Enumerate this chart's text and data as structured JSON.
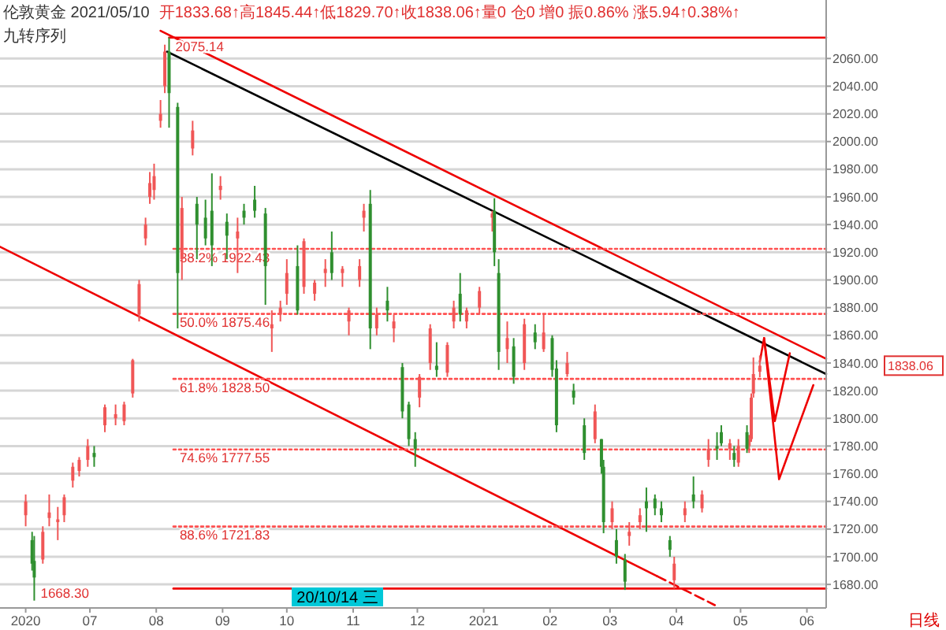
{
  "chart_data": {
    "type": "candlestick",
    "title": "伦敦黄金 2021/05/10",
    "subtitle": "开1833.68↑高1845.44↑低1829.70↑收1838.06↑量0 仓0 增0 振0.86% 涨5.94↑0.38%↑",
    "xlim": [
      "2020-05-20",
      "2021-06-10"
    ],
    "xticks": [
      {
        "value": "2020-06-01",
        "label": "2020"
      },
      {
        "value": "2020-07-01",
        "label": "07"
      },
      {
        "value": "2020-08-01",
        "label": "08"
      },
      {
        "value": "2020-09-01",
        "label": "09"
      },
      {
        "value": "2020-10-01",
        "label": "10"
      },
      {
        "value": "2020-11-01",
        "label": "11"
      },
      {
        "value": "2020-12-01",
        "label": "12"
      },
      {
        "value": "2021-01-01",
        "label": "2021"
      },
      {
        "value": "2021-02-01",
        "label": "02"
      },
      {
        "value": "2021-03-01",
        "label": "03"
      },
      {
        "value": "2021-04-01",
        "label": "04"
      },
      {
        "value": "2021-05-01",
        "label": "05"
      },
      {
        "value": "2021-06-01",
        "label": "06"
      }
    ],
    "ylim": [
      1663,
      2100
    ],
    "yticks": [
      {
        "value": 1680,
        "label": "1680.00"
      },
      {
        "value": 1700,
        "label": "1700.00"
      },
      {
        "value": 1720,
        "label": "1720.00"
      },
      {
        "value": 1740,
        "label": "1740.00"
      },
      {
        "value": 1760,
        "label": "1760.00"
      },
      {
        "value": 1780,
        "label": "1780.00"
      },
      {
        "value": 1800,
        "label": "1800.00"
      },
      {
        "value": 1820,
        "label": "1820.00"
      },
      {
        "value": 1840,
        "label": "1840.00"
      },
      {
        "value": 1860,
        "label": "1860.00"
      },
      {
        "value": 1880,
        "label": "1880.00"
      },
      {
        "value": 1900,
        "label": "1900.00"
      },
      {
        "value": 1920,
        "label": "1920.00"
      },
      {
        "value": 1940,
        "label": "1940.00"
      },
      {
        "value": 1960,
        "label": "1960.00"
      },
      {
        "value": 1980,
        "label": "1980.00"
      },
      {
        "value": 2000,
        "label": "2000.00"
      },
      {
        "value": 2020,
        "label": "2020.00"
      },
      {
        "value": 2040,
        "label": "2040.00"
      },
      {
        "value": 2060,
        "label": "2060.00"
      }
    ],
    "grid": "y",
    "series": [
      {
        "type": "line",
        "color": "#ee0000",
        "line_style": "solid",
        "x": [
          "2020-08-03",
          "2021-06-10"
        ],
        "values": [
          2080,
          1843
        ]
      },
      {
        "type": "line",
        "color": "#000000",
        "line_style": "solid",
        "x": [
          "2020-08-06",
          "2021-06-10"
        ],
        "values": [
          2065,
          1832
        ]
      },
      {
        "type": "line",
        "color": "#ee0000",
        "line_style": "solid",
        "x": [
          "2020-05-20",
          "2021-03-23"
        ],
        "values": [
          1924,
          1686
        ]
      },
      {
        "type": "line",
        "color": "#ee0000",
        "line_style": "dashed",
        "x": [
          "2021-03-23",
          "2021-04-19"
        ],
        "values": [
          1686,
          1665
        ]
      },
      {
        "type": "line",
        "color": "#ee0000",
        "line_style": "solid",
        "x": [
          "2020-08-07",
          "2021-06-10"
        ],
        "values": [
          2075.14,
          2075.14
        ]
      },
      {
        "type": "line",
        "color": "#ee0000",
        "line_style": "solid",
        "x": [
          "2020-08-09",
          "2021-06-10"
        ],
        "values": [
          1677,
          1677
        ]
      },
      {
        "type": "line",
        "color": "#ff5050",
        "line_style": "dotted",
        "x": [
          "2020-08-09",
          "2021-06-10"
        ],
        "values": [
          1922.43,
          1922.43
        ]
      },
      {
        "type": "line",
        "color": "#ff5050",
        "line_style": "dotted",
        "x": [
          "2020-08-09",
          "2021-06-10"
        ],
        "values": [
          1875.46,
          1875.46
        ]
      },
      {
        "type": "line",
        "color": "#ff5050",
        "line_style": "dotted",
        "x": [
          "2020-08-09",
          "2021-06-10"
        ],
        "values": [
          1828.5,
          1828.5
        ]
      },
      {
        "type": "line",
        "color": "#ff5050",
        "line_style": "dotted",
        "x": [
          "2020-08-09",
          "2021-06-10"
        ],
        "values": [
          1777.55,
          1777.55
        ]
      },
      {
        "type": "line",
        "color": "#ff5050",
        "line_style": "dotted",
        "x": [
          "2020-08-09",
          "2021-06-10"
        ],
        "values": [
          1721.83,
          1721.83
        ]
      },
      {
        "type": "line",
        "color": "#ee0000",
        "line_style": "solid",
        "x": [
          "2021-05-10",
          "2021-05-12",
          "2021-05-17",
          "2021-05-24"
        ],
        "values": [
          1841,
          1858,
          1798,
          1847
        ]
      },
      {
        "type": "line",
        "color": "#ee0000",
        "line_style": "solid",
        "x": [
          "2021-05-12",
          "2021-05-19",
          "2021-06-04"
        ],
        "values": [
          1858,
          1756,
          1824
        ]
      },
      {
        "color": "#f05656",
        "x": [
          "2020-06-01",
          "2020-06-09",
          "2020-06-12",
          "2020-06-16",
          "2020-06-19",
          "2020-06-23",
          "2020-06-26",
          "2020-06-30",
          "2020-07-08",
          "2020-07-13",
          "2020-07-17",
          "2020-07-21",
          "2020-07-24",
          "2020-07-27",
          "2020-07-29",
          "2020-07-31",
          "2020-08-03",
          "2020-08-05",
          "2020-08-13",
          "2020-08-18",
          "2020-08-31",
          "2020-09-08",
          "2020-09-24",
          "2020-09-28",
          "2020-10-01",
          "2020-10-09",
          "2020-10-14",
          "2020-10-19",
          "2020-10-27",
          "2020-10-30",
          "2020-11-04",
          "2020-11-06",
          "2020-11-12",
          "2020-11-20",
          "2020-12-02",
          "2020-12-07",
          "2020-12-15",
          "2020-12-18",
          "2020-12-24",
          "2020-12-30",
          "2021-01-05",
          "2021-01-12",
          "2021-01-20",
          "2021-01-29",
          "2021-02-09",
          "2021-02-22",
          "2021-03-02",
          "2021-03-10",
          "2021-03-15",
          "2021-03-31",
          "2021-04-05",
          "2021-04-13",
          "2021-04-16",
          "2021-04-26",
          "2021-04-30",
          "2021-05-05",
          "2021-05-06",
          "2021-05-07",
          "2021-05-10"
        ],
        "ohlc": [
          [
            1730,
            1745,
            1722,
            1740
          ],
          [
            1698,
            1722,
            1695,
            1718
          ],
          [
            1728,
            1745,
            1722,
            1732
          ],
          [
            1725,
            1736,
            1712,
            1727
          ],
          [
            1730,
            1745,
            1725,
            1743
          ],
          [
            1755,
            1768,
            1750,
            1765
          ],
          [
            1762,
            1772,
            1758,
            1770
          ],
          [
            1770,
            1785,
            1765,
            1780
          ],
          [
            1795,
            1810,
            1790,
            1808
          ],
          [
            1800,
            1810,
            1795,
            1803
          ],
          [
            1798,
            1812,
            1795,
            1810
          ],
          [
            1818,
            1843,
            1815,
            1842
          ],
          [
            1875,
            1900,
            1870,
            1897
          ],
          [
            1930,
            1945,
            1925,
            1940
          ],
          [
            1960,
            1978,
            1955,
            1970
          ],
          [
            1965,
            1984,
            1958,
            1975
          ],
          [
            2015,
            2030,
            2010,
            2020
          ],
          [
            2040,
            2070,
            2035,
            2065
          ],
          [
            1915,
            1960,
            1900,
            1952
          ],
          [
            1995,
            2015,
            1990,
            2008
          ],
          [
            1965,
            1975,
            1958,
            1968
          ],
          [
            1930,
            1945,
            1905,
            1935
          ],
          [
            1865,
            1878,
            1848,
            1868
          ],
          [
            1875,
            1885,
            1870,
            1880
          ],
          [
            1890,
            1915,
            1882,
            1905
          ],
          [
            1895,
            1930,
            1890,
            1928
          ],
          [
            1890,
            1900,
            1885,
            1898
          ],
          [
            1905,
            1915,
            1895,
            1908
          ],
          [
            1905,
            1910,
            1895,
            1908
          ],
          [
            1870,
            1880,
            1860,
            1878
          ],
          [
            1900,
            1915,
            1895,
            1910
          ],
          [
            1945,
            1955,
            1935,
            1950
          ],
          [
            1865,
            1880,
            1860,
            1875
          ],
          [
            1865,
            1875,
            1855,
            1870
          ],
          [
            1815,
            1832,
            1808,
            1830
          ],
          [
            1840,
            1868,
            1835,
            1865
          ],
          [
            1833,
            1855,
            1830,
            1853
          ],
          [
            1870,
            1885,
            1865,
            1880
          ],
          [
            1870,
            1880,
            1865,
            1878
          ],
          [
            1880,
            1895,
            1875,
            1892
          ],
          [
            1945,
            1950,
            1935,
            1948
          ],
          [
            1850,
            1870,
            1840,
            1858
          ],
          [
            1840,
            1872,
            1835,
            1868
          ],
          [
            1850,
            1875,
            1848,
            1862
          ],
          [
            1832,
            1848,
            1830,
            1840
          ],
          [
            1785,
            1810,
            1782,
            1805
          ],
          [
            1725,
            1740,
            1720,
            1735
          ],
          [
            1715,
            1725,
            1708,
            1718
          ],
          [
            1725,
            1735,
            1720,
            1730
          ],
          [
            1683,
            1700,
            1677,
            1695
          ],
          [
            1730,
            1740,
            1725,
            1735
          ],
          [
            1735,
            1748,
            1732,
            1745
          ],
          [
            1770,
            1785,
            1765,
            1778
          ],
          [
            1778,
            1785,
            1770,
            1782
          ],
          [
            1768,
            1785,
            1765,
            1780
          ],
          [
            1780,
            1788,
            1775,
            1785
          ],
          [
            1785,
            1818,
            1783,
            1815
          ],
          [
            1818,
            1844,
            1815,
            1832
          ],
          [
            1833.68,
            1845.44,
            1829.7,
            1838.06
          ]
        ]
      },
      {
        "color": "#2f8f2f",
        "x": [
          "2020-06-04",
          "2020-06-05",
          "2020-07-03",
          "2020-08-07",
          "2020-08-11",
          "2020-08-20",
          "2020-08-24",
          "2020-08-27",
          "2020-09-03",
          "2020-09-11",
          "2020-09-16",
          "2020-09-21",
          "2020-10-06",
          "2020-10-22",
          "2020-11-09",
          "2020-11-17",
          "2020-11-24",
          "2020-11-27",
          "2020-11-30",
          "2020-12-10",
          "2020-12-21",
          "2021-01-06",
          "2021-01-08",
          "2021-01-15",
          "2021-01-25",
          "2021-02-02",
          "2021-02-04",
          "2021-02-12",
          "2021-02-17",
          "2021-02-25",
          "2021-02-26",
          "2021-03-04",
          "2021-03-08",
          "2021-03-18",
          "2021-03-22",
          "2021-03-25",
          "2021-03-29",
          "2021-04-09",
          "2021-04-20",
          "2021-04-22",
          "2021-04-28",
          "2021-05-04"
        ],
        "ohlc": [
          [
            1712,
            1718,
            1690,
            1695
          ],
          [
            1697,
            1715,
            1668.3,
            1685
          ],
          [
            1775,
            1780,
            1765,
            1772
          ],
          [
            2065,
            2075.14,
            2010,
            2035
          ],
          [
            2025,
            2028,
            1865,
            1905
          ],
          [
            1955,
            1960,
            1915,
            1940
          ],
          [
            1945,
            1958,
            1925,
            1930
          ],
          [
            1950,
            1977,
            1910,
            1925
          ],
          [
            1942,
            1948,
            1915,
            1932
          ],
          [
            1950,
            1955,
            1940,
            1945
          ],
          [
            1958,
            1968,
            1945,
            1950
          ],
          [
            1948,
            1952,
            1882,
            1910
          ],
          [
            1910,
            1925,
            1875,
            1878
          ],
          [
            1920,
            1935,
            1900,
            1905
          ],
          [
            1955,
            1965,
            1850,
            1865
          ],
          [
            1885,
            1895,
            1870,
            1878
          ],
          [
            1837,
            1840,
            1800,
            1805
          ],
          [
            1810,
            1812,
            1780,
            1785
          ],
          [
            1785,
            1790,
            1765,
            1778
          ],
          [
            1838,
            1855,
            1830,
            1835
          ],
          [
            1890,
            1905,
            1870,
            1875
          ],
          [
            1950,
            1959,
            1910,
            1920
          ],
          [
            1905,
            1915,
            1835,
            1848
          ],
          [
            1852,
            1858,
            1825,
            1830
          ],
          [
            1862,
            1868,
            1850,
            1855
          ],
          [
            1858,
            1860,
            1830,
            1835
          ],
          [
            1836,
            1842,
            1790,
            1795
          ],
          [
            1820,
            1825,
            1810,
            1815
          ],
          [
            1795,
            1800,
            1770,
            1775
          ],
          [
            1785,
            1785,
            1760,
            1765
          ],
          [
            1765,
            1770,
            1717,
            1725
          ],
          [
            1712,
            1720,
            1695,
            1700
          ],
          [
            1698,
            1702,
            1676,
            1682
          ],
          [
            1740,
            1750,
            1718,
            1735
          ],
          [
            1742,
            1745,
            1730,
            1735
          ],
          [
            1735,
            1740,
            1725,
            1730
          ],
          [
            1712,
            1715,
            1700,
            1705
          ],
          [
            1745,
            1758,
            1735,
            1740
          ],
          [
            1780,
            1790,
            1770,
            1778
          ],
          [
            1790,
            1795,
            1780,
            1782
          ],
          [
            1775,
            1780,
            1765,
            1770
          ],
          [
            1790,
            1795,
            1775,
            1778
          ]
        ]
      }
    ],
    "annotations": [
      {
        "text": "2075.14",
        "x": "2020-08-07",
        "y": 2075.14
      },
      {
        "text": "1668.30",
        "x": "2020-06-05",
        "y": 1668.3
      },
      {
        "text": "38.2% 1922.43",
        "x": "2020-08-09",
        "y": 1922.43
      },
      {
        "text": "50.0% 1875.46",
        "x": "2020-08-09",
        "y": 1875.46
      },
      {
        "text": "61.8% 1828.50",
        "x": "2020-08-09",
        "y": 1828.5
      },
      {
        "text": "74.6% 1777.55",
        "x": "2020-08-09",
        "y": 1777.55
      },
      {
        "text": "88.6% 1721.83",
        "x": "2020-08-09",
        "y": 1721.83
      },
      "1838.06",
      "20/10/14 三",
      "九转序列",
      "日线"
    ]
  }
}
